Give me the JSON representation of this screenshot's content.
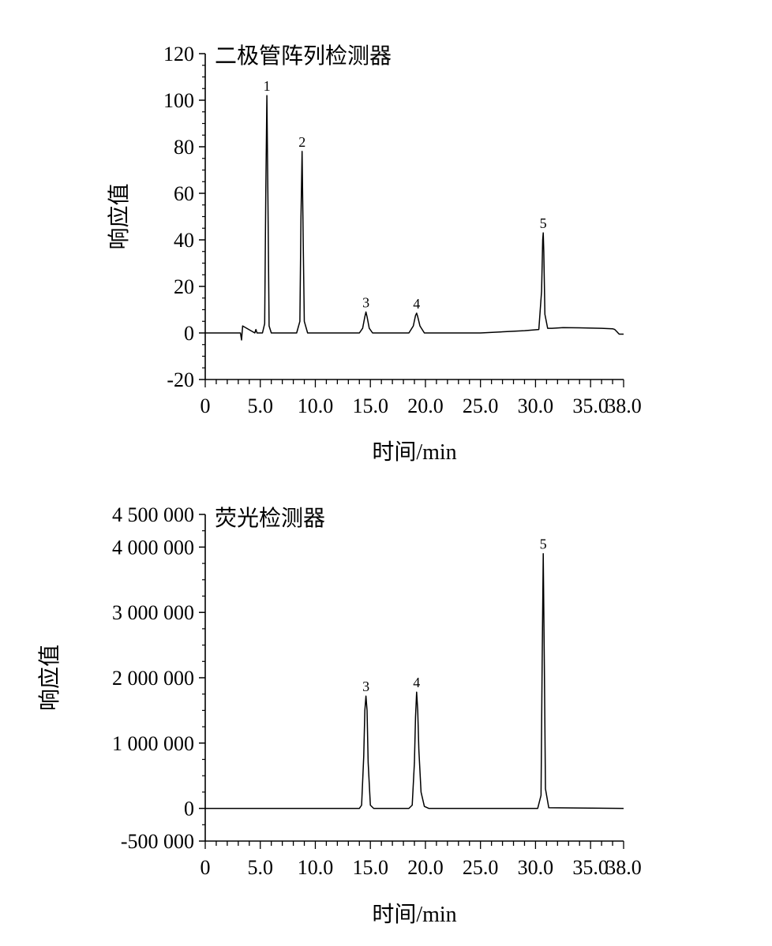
{
  "chart_data": [
    {
      "type": "line",
      "title": "二极管阵列检测器",
      "xlabel": "时间/min",
      "ylabel": "响应值",
      "xlim": [
        0,
        38
      ],
      "ylim": [
        -20,
        120
      ],
      "xticks": [
        0,
        5,
        10,
        15,
        20,
        25,
        30,
        35,
        38
      ],
      "xtick_labels": [
        "0",
        "5.0",
        "10.0",
        "15.0",
        "20.0",
        "25.0",
        "30.0",
        "35.0",
        "38.0"
      ],
      "yticks": [
        -20,
        0,
        20,
        40,
        60,
        80,
        100,
        120
      ],
      "ytick_labels": [
        "-20",
        "0",
        "20",
        "40",
        "60",
        "80",
        "100",
        "120"
      ],
      "peaks": [
        {
          "label": "1",
          "x": 5.6,
          "y": 102
        },
        {
          "label": "2",
          "x": 8.8,
          "y": 78
        },
        {
          "label": "3",
          "x": 14.6,
          "y": 9
        },
        {
          "label": "4",
          "x": 19.2,
          "y": 8.5
        },
        {
          "label": "5",
          "x": 30.7,
          "y": 43
        }
      ],
      "series": [
        {
          "x": [
            0,
            3.2,
            3.3,
            3.4,
            4.5,
            4.6,
            4.7,
            5.2,
            5.4,
            5.5,
            5.6,
            5.7,
            5.8,
            6.0,
            8.3,
            8.6,
            8.7,
            8.8,
            8.9,
            9.0,
            9.3,
            14.0,
            14.3,
            14.5,
            14.6,
            14.7,
            14.9,
            15.2,
            18.5,
            18.9,
            19.1,
            19.2,
            19.3,
            19.5,
            19.9,
            25.0,
            29.0,
            30.3,
            30.55,
            30.65,
            30.7,
            30.75,
            30.85,
            31.1,
            31.5,
            32.5,
            34.0,
            36.0,
            37.0,
            37.2,
            37.4,
            37.6,
            37.8,
            38.0
          ],
          "y": [
            0,
            0,
            -3,
            3,
            0,
            1.5,
            0,
            0,
            4,
            60,
            102,
            55,
            3,
            0,
            0,
            5,
            50,
            78,
            40,
            5,
            0,
            0,
            2,
            7,
            9,
            7,
            2,
            0,
            0,
            3,
            7.5,
            8.5,
            7,
            3,
            0,
            0,
            1,
            1.5,
            18,
            40,
            43,
            35,
            8,
            2,
            2,
            2.3,
            2.2,
            2,
            1.8,
            1.5,
            0.5,
            -0.5,
            -0.5,
            -0.5
          ]
        }
      ]
    },
    {
      "type": "line",
      "title": "荧光检测器",
      "xlabel": "时间/min",
      "ylabel": "响应值",
      "xlim": [
        0,
        38
      ],
      "ylim": [
        -500000,
        4500000
      ],
      "xticks": [
        0,
        5,
        10,
        15,
        20,
        25,
        30,
        35,
        38
      ],
      "xtick_labels": [
        "0",
        "5.0",
        "10.0",
        "15.0",
        "20.0",
        "25.0",
        "30.0",
        "35.0",
        "38.0"
      ],
      "yticks": [
        -500000,
        0,
        1000000,
        2000000,
        3000000,
        4000000,
        4500000
      ],
      "ytick_labels": [
        "-500 000",
        "0",
        "1 000 000",
        "2 000 000",
        "3 000 000",
        "4 000 000",
        "4 500 000"
      ],
      "peaks": [
        {
          "label": "3",
          "x": 14.6,
          "y": 1720000
        },
        {
          "label": "4",
          "x": 19.2,
          "y": 1780000
        },
        {
          "label": "5",
          "x": 30.7,
          "y": 3900000
        }
      ],
      "series": [
        {
          "x": [
            0,
            14.0,
            14.2,
            14.4,
            14.5,
            14.6,
            14.7,
            14.8,
            15.0,
            15.3,
            18.5,
            18.8,
            19.0,
            19.1,
            19.2,
            19.3,
            19.4,
            19.6,
            19.9,
            20.3,
            30.2,
            30.5,
            30.6,
            30.7,
            30.8,
            30.9,
            31.2,
            38.0
          ],
          "y": [
            0,
            0,
            50000,
            800000,
            1500000,
            1720000,
            1500000,
            700000,
            50000,
            0,
            0,
            50000,
            700000,
            1400000,
            1780000,
            1500000,
            900000,
            250000,
            30000,
            0,
            0,
            200000,
            2200000,
            3900000,
            2200000,
            300000,
            10000,
            0
          ]
        }
      ]
    }
  ]
}
